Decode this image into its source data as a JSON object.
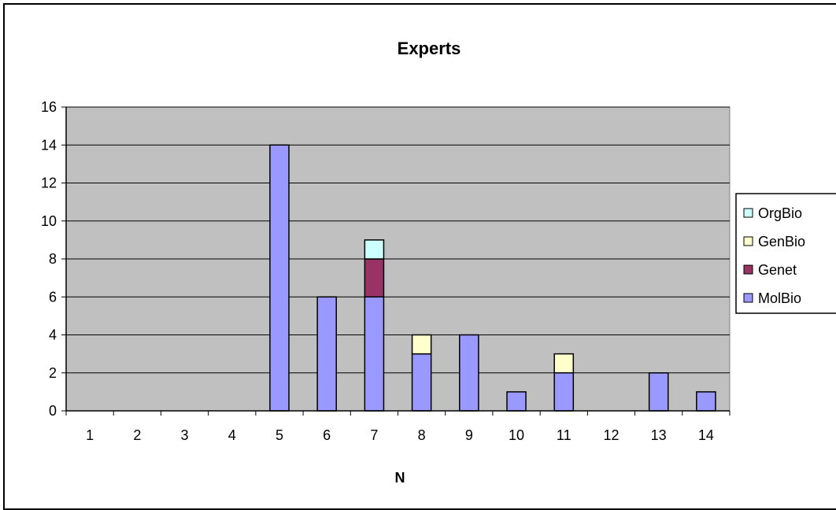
{
  "chart_data": {
    "type": "bar",
    "stacked": true,
    "title": "Experts",
    "xlabel": "N",
    "ylabel": "",
    "ylim": [
      0,
      16
    ],
    "yticks": [
      0,
      2,
      4,
      6,
      8,
      10,
      12,
      14,
      16
    ],
    "categories": [
      "1",
      "2",
      "3",
      "4",
      "5",
      "6",
      "7",
      "8",
      "9",
      "10",
      "11",
      "12",
      "13",
      "14"
    ],
    "grid": true,
    "legend_position": "right",
    "series": [
      {
        "name": "MolBio",
        "color": "#9999ff",
        "values": [
          0,
          0,
          0,
          0,
          14,
          6,
          6,
          3,
          4,
          1,
          2,
          0,
          2,
          1
        ]
      },
      {
        "name": "Genet",
        "color": "#993366",
        "values": [
          0,
          0,
          0,
          0,
          0,
          0,
          2,
          0,
          0,
          0,
          0,
          0,
          0,
          0
        ]
      },
      {
        "name": "GenBio",
        "color": "#ffffcc",
        "values": [
          0,
          0,
          0,
          0,
          0,
          0,
          0,
          1,
          0,
          0,
          1,
          0,
          0,
          0
        ]
      },
      {
        "name": "OrgBio",
        "color": "#ccffff",
        "values": [
          0,
          0,
          0,
          0,
          0,
          0,
          1,
          0,
          0,
          0,
          0,
          0,
          0,
          0
        ]
      }
    ],
    "legend_order": [
      "OrgBio",
      "GenBio",
      "Genet",
      "MolBio"
    ],
    "plot_background": "#c0c0c0"
  }
}
